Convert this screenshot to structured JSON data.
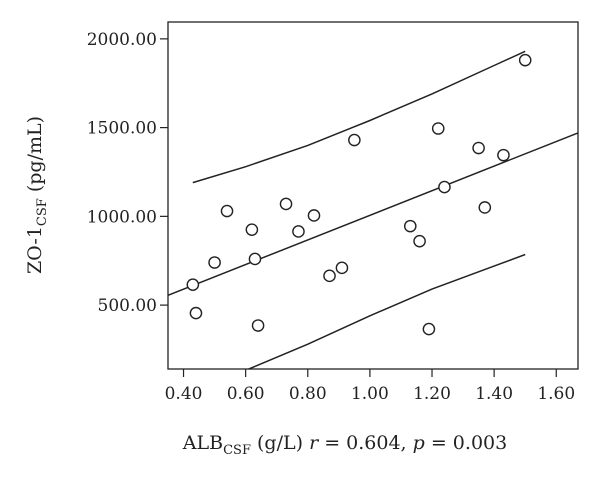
{
  "chart_data": {
    "type": "scatter",
    "xlim": [
      0.35,
      1.67
    ],
    "ylim": [
      140,
      2095
    ],
    "x_ticks": [
      0.4,
      0.6,
      0.8,
      1.0,
      1.2,
      1.4,
      1.6
    ],
    "x_tick_labels": [
      "0.40",
      "0.60",
      "0.80",
      "1.00",
      "1.20",
      "1.40",
      "1.60"
    ],
    "y_ticks": [
      500,
      1000,
      1500,
      2000
    ],
    "y_tick_labels": [
      "500.00",
      "1000.00",
      "1500.00",
      "2000.00"
    ],
    "ylabel": {
      "main": "ZO-1",
      "subscript": "CSF",
      "unit": " (pg/mL)"
    },
    "xlabel": {
      "main": "ALB",
      "subscript": "CSF",
      "unit": " (g/L) ",
      "r_symbol": "r",
      "r_text": " = 0.604, ",
      "p_symbol": "p",
      "p_text": " = 0.003"
    },
    "points": [
      {
        "x": 0.43,
        "y": 615
      },
      {
        "x": 0.44,
        "y": 455
      },
      {
        "x": 0.5,
        "y": 740
      },
      {
        "x": 0.54,
        "y": 1030
      },
      {
        "x": 0.62,
        "y": 925
      },
      {
        "x": 0.63,
        "y": 760
      },
      {
        "x": 0.64,
        "y": 385
      },
      {
        "x": 0.73,
        "y": 1070
      },
      {
        "x": 0.77,
        "y": 915
      },
      {
        "x": 0.82,
        "y": 1005
      },
      {
        "x": 0.87,
        "y": 665
      },
      {
        "x": 0.91,
        "y": 710
      },
      {
        "x": 0.95,
        "y": 1430
      },
      {
        "x": 1.13,
        "y": 945
      },
      {
        "x": 1.16,
        "y": 860
      },
      {
        "x": 1.19,
        "y": 365
      },
      {
        "x": 1.22,
        "y": 1495
      },
      {
        "x": 1.24,
        "y": 1165
      },
      {
        "x": 1.35,
        "y": 1385
      },
      {
        "x": 1.37,
        "y": 1050
      },
      {
        "x": 1.43,
        "y": 1345
      },
      {
        "x": 1.5,
        "y": 1880
      }
    ],
    "fit_line": [
      {
        "x": 0.35,
        "y": 555
      },
      {
        "x": 1.67,
        "y": 1470
      }
    ],
    "upper_band": [
      {
        "x": 0.43,
        "y": 1190
      },
      {
        "x": 0.6,
        "y": 1280
      },
      {
        "x": 0.8,
        "y": 1400
      },
      {
        "x": 1.0,
        "y": 1540
      },
      {
        "x": 1.2,
        "y": 1690
      },
      {
        "x": 1.4,
        "y": 1850
      },
      {
        "x": 1.5,
        "y": 1930
      }
    ],
    "lower_band": [
      {
        "x": 0.61,
        "y": 140
      },
      {
        "x": 0.8,
        "y": 280
      },
      {
        "x": 1.0,
        "y": 440
      },
      {
        "x": 1.2,
        "y": 590
      },
      {
        "x": 1.4,
        "y": 720
      },
      {
        "x": 1.5,
        "y": 785
      }
    ],
    "grid": false,
    "legend": "none"
  }
}
